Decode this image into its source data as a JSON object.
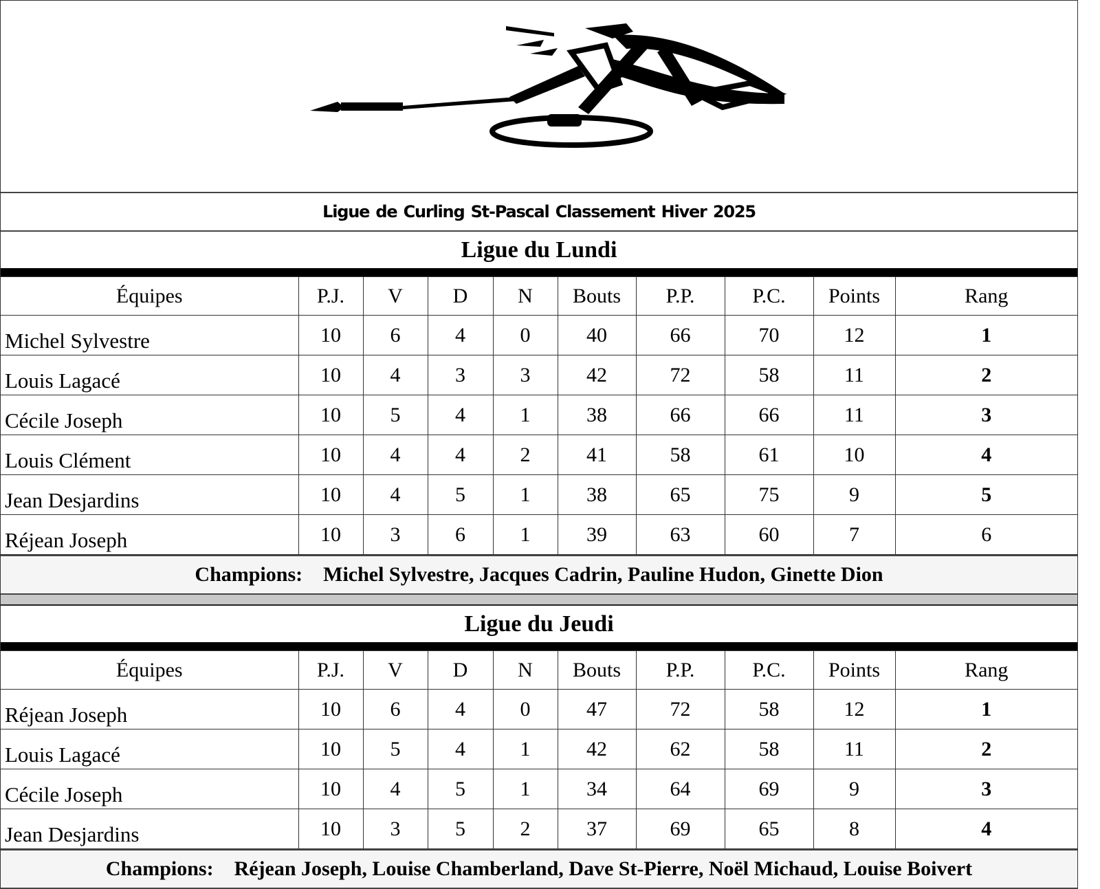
{
  "title": "Ligue de Curling St-Pascal  Classement  Hiver 2025",
  "columns": [
    "Équipes",
    "P.J.",
    "V",
    "D",
    "N",
    "Bouts",
    "P.P.",
    "P.C.",
    "Points",
    "Rang"
  ],
  "leagues": [
    {
      "name": "Ligue du Lundi",
      "rows": [
        [
          "Michel Sylvestre",
          "10",
          "6",
          "4",
          "0",
          "40",
          "66",
          "70",
          "12",
          "1"
        ],
        [
          "Louis Lagacé",
          "10",
          "4",
          "3",
          "3",
          "42",
          "72",
          "58",
          "11",
          "2"
        ],
        [
          "Cécile Joseph",
          "10",
          "5",
          "4",
          "1",
          "38",
          "66",
          "66",
          "11",
          "3"
        ],
        [
          "Louis Clément",
          "10",
          "4",
          "4",
          "2",
          "41",
          "58",
          "61",
          "10",
          "4"
        ],
        [
          "Jean Desjardins",
          "10",
          "4",
          "5",
          "1",
          "38",
          "65",
          "75",
          "9",
          "5"
        ],
        [
          "Réjean Joseph",
          "10",
          "3",
          "6",
          "1",
          "39",
          "63",
          "60",
          "7",
          "6"
        ]
      ],
      "champions_label": "Champions:",
      "champions": "Michel Sylvestre, Jacques Cadrin, Pauline Hudon, Ginette Dion"
    },
    {
      "name": "Ligue du Jeudi",
      "rows": [
        [
          "Réjean Joseph",
          "10",
          "6",
          "4",
          "0",
          "47",
          "72",
          "58",
          "12",
          "1"
        ],
        [
          "Louis Lagacé",
          "10",
          "5",
          "4",
          "1",
          "42",
          "62",
          "58",
          "11",
          "2"
        ],
        [
          "Cécile Joseph",
          "10",
          "4",
          "5",
          "1",
          "34",
          "64",
          "69",
          "9",
          "3"
        ],
        [
          "Jean Desjardins",
          "10",
          "3",
          "5",
          "2",
          "37",
          "69",
          "65",
          "8",
          "4"
        ]
      ],
      "champions_label": "Champions:",
      "champions": "Réjean Joseph, Louise Chamberland, Dave St-Pierre, Noël Michaud, Louise Boivert"
    }
  ],
  "logo": {
    "icon": "curler-icon"
  }
}
